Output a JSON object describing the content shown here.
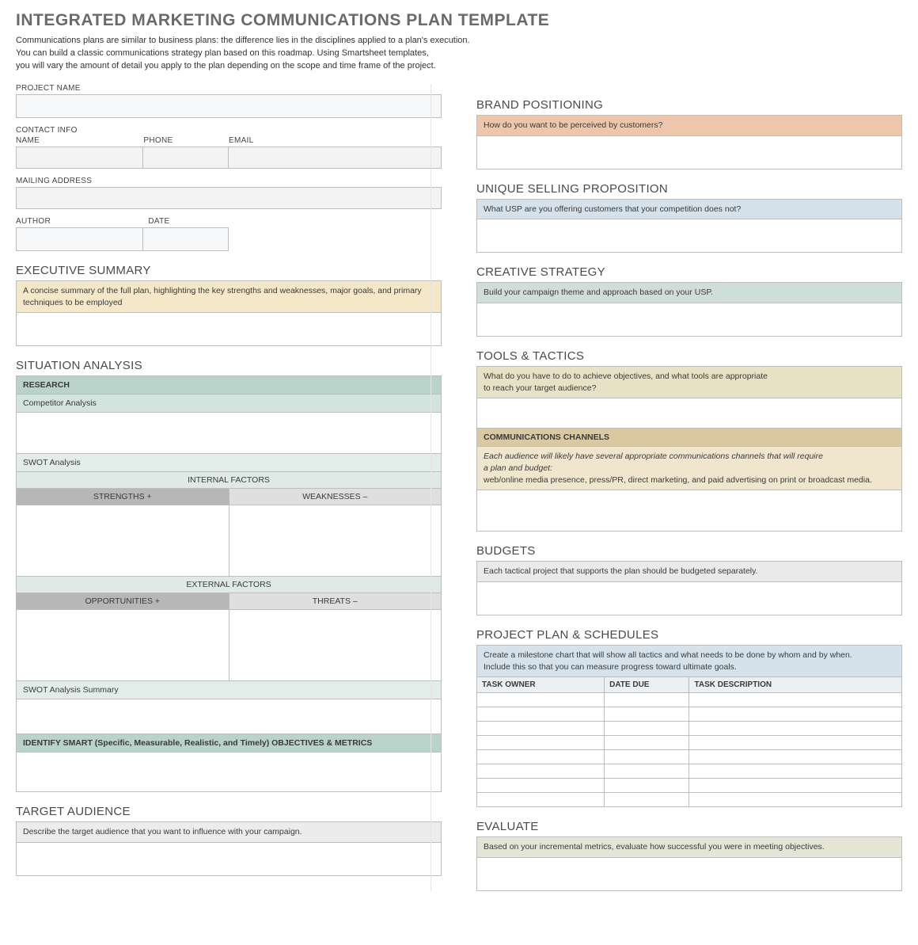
{
  "title": "INTEGRATED MARKETING COMMUNICATIONS PLAN TEMPLATE",
  "intro_lines": [
    "Communications plans are similar to business plans: the difference lies in the disciplines applied to a plan's execution.",
    "You can build a classic communications strategy plan based on this roadmap. Using Smartsheet templates,",
    "you will vary the amount of detail you apply to the plan depending on the scope and time frame of the project."
  ],
  "labels": {
    "project_name": "PROJECT NAME",
    "contact_info": "CONTACT INFO",
    "name": "NAME",
    "phone": "PHONE",
    "email": "EMAIL",
    "mailing_address": "MAILING ADDRESS",
    "author": "AUTHOR",
    "date": "DATE"
  },
  "exec_summary": {
    "title": "EXECUTIVE SUMMARY",
    "hint": "A concise summary of the full plan, highlighting the key strengths and weaknesses, major goals, and primary techniques to be employed",
    "hint_bg": "#f4e8c9"
  },
  "situation": {
    "title": "SITUATION ANALYSIS",
    "research": "RESEARCH",
    "research_bg": "#b9d2ca",
    "competitor": "Competitor Analysis",
    "competitor_bg": "#d3e3de",
    "swot": "SWOT Analysis",
    "swot_bg": "#e2edea",
    "internal": "INTERNAL FACTORS",
    "external": "EXTERNAL FACTORS",
    "factor_bg": "#dfeae6",
    "strengths": "STRENGTHS  +",
    "weaknesses": "WEAKNESSES  –",
    "opportunities": "OPPORTUNITIES  +",
    "threats": "THREATS  –",
    "pos_bg": "#b7b7b7",
    "neg_bg": "#dfdfdf",
    "swot_summary": "SWOT Analysis Summary",
    "swot_summary_bg": "#e2edea",
    "smart": "IDENTIFY SMART (Specific, Measurable, Realistic, and Timely) OBJECTIVES & METRICS",
    "smart_bg": "#b9d2ca"
  },
  "target": {
    "title": "TARGET AUDIENCE",
    "hint": "Describe the target audience that you want to influence with your campaign.",
    "hint_bg": "#ececec"
  },
  "brand": {
    "title": "BRAND POSITIONING",
    "hint": "How do you want to be perceived by customers?",
    "hint_bg": "#edc6ac"
  },
  "usp": {
    "title": "UNIQUE SELLING PROPOSITION",
    "hint": "What USP are you offering customers that your competition does not?",
    "hint_bg": "#d5e2ec"
  },
  "creative": {
    "title": "CREATIVE STRATEGY",
    "hint": "Build your campaign theme and approach based on your USP.",
    "hint_bg": "#d0ded9"
  },
  "tools": {
    "title": "TOOLS & TACTICS",
    "hint1": "What do you have to do to achieve objectives, and what tools are appropriate",
    "hint2": "to reach your target audience?",
    "hint_bg": "#e7e2c6",
    "channels": "COMMUNICATIONS CHANNELS",
    "channels_bg": "#dac9a0",
    "chan_hint1": "Each audience will likely have several appropriate communications channels that will require",
    "chan_hint2": "a plan and budget:",
    "chan_hint3": "web/online media presence, press/PR, direct marketing, and paid advertising on print or broadcast media.",
    "chan_hint_bg": "#f0e6ce"
  },
  "budgets": {
    "title": "BUDGETS",
    "hint": "Each tactical project that supports the plan should be budgeted separately.",
    "hint_bg": "#eaeaea"
  },
  "plan": {
    "title": "PROJECT PLAN & SCHEDULES",
    "hint1": "Create a milestone chart that will show all tactics and what needs to be done by whom and by when.",
    "hint2": "Include this so that you can measure progress toward ultimate goals.",
    "hint_bg": "#d5e2ec",
    "cols": [
      "TASK OWNER",
      "DATE DUE",
      "TASK DESCRIPTION"
    ],
    "header_bg": "#eaf0f3",
    "row_count": 8
  },
  "evaluate": {
    "title": "EVALUATE",
    "hint": "Based on your incremental metrics, evaluate how successful you were in meeting objectives.",
    "hint_bg": "#e5e5d7"
  }
}
